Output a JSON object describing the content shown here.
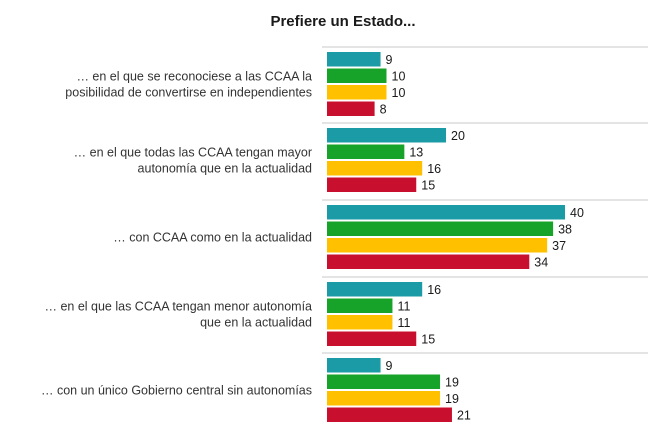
{
  "chart_data": {
    "type": "bar",
    "orientation": "horizontal",
    "title": "Prefiere un Estado...",
    "xlim": [
      0,
      42
    ],
    "grid": false,
    "legend": "none",
    "categories": [
      [
        "… en el que se reconociese a las CCAA la",
        "posibilidad de convertirse en independientes"
      ],
      [
        "… en el que todas las CCAA tengan mayor",
        "autonomía que en la actualidad"
      ],
      [
        "… con CCAA como en la actualidad"
      ],
      [
        "… en el que las CCAA tengan menor autonomía",
        "que en la actualidad"
      ],
      [
        "… con un único Gobierno central sin autonomías"
      ]
    ],
    "series": [
      {
        "color": "#1b9ba6",
        "values": [
          9,
          20,
          40,
          16,
          9
        ]
      },
      {
        "color": "#17a32a",
        "values": [
          10,
          13,
          38,
          11,
          19
        ]
      },
      {
        "color": "#ffc000",
        "values": [
          10,
          16,
          37,
          11,
          19
        ]
      },
      {
        "color": "#c8102e",
        "values": [
          8,
          15,
          34,
          15,
          21
        ]
      }
    ],
    "separator_color": "#c8c8c8"
  }
}
